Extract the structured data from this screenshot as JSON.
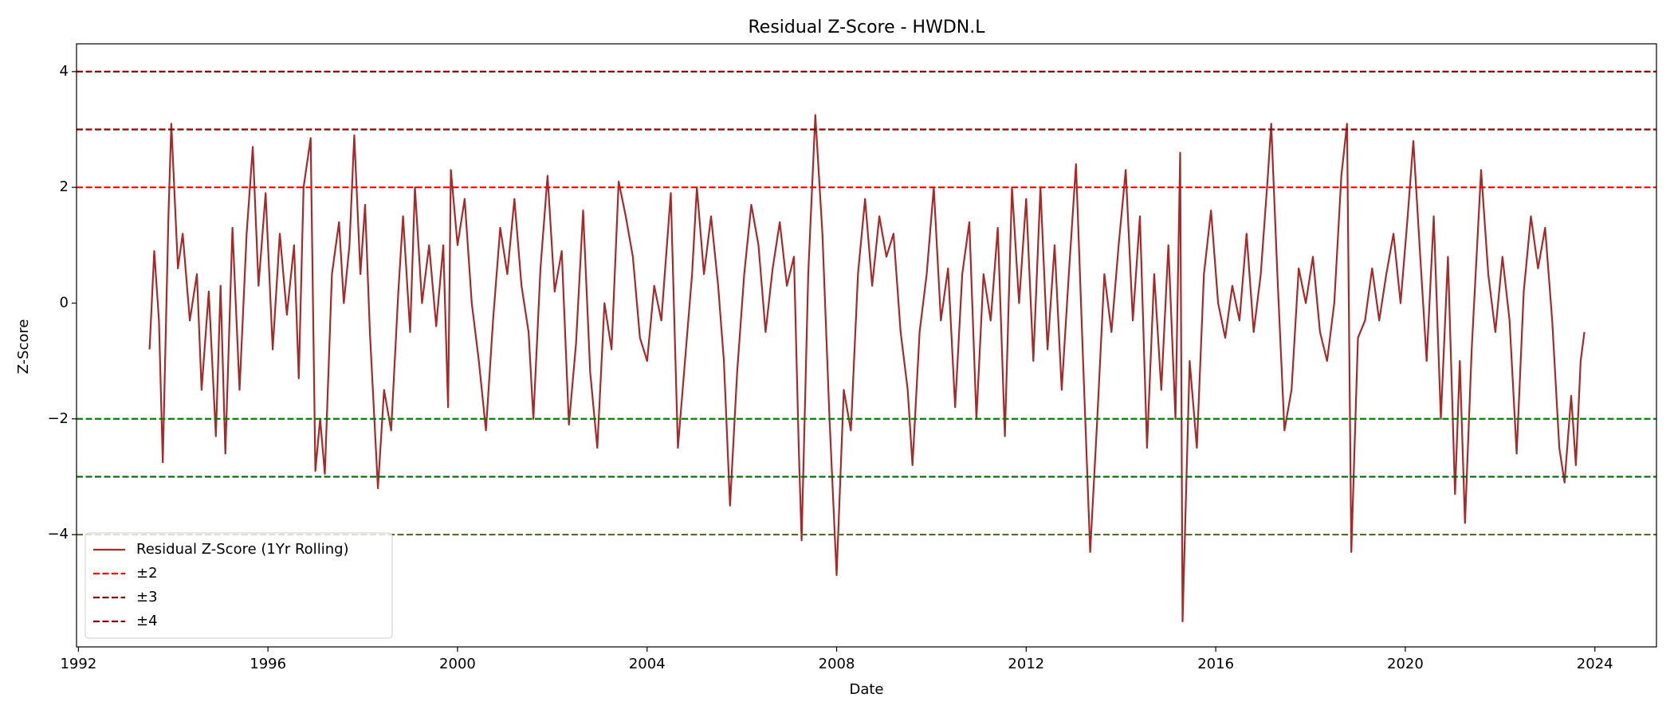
{
  "chart_data": {
    "type": "line",
    "title": "Residual Z-Score - HWDN.L",
    "x_label": "Date",
    "y_label": "Z-Score",
    "x": [
      1993.5,
      1993.6,
      1993.7,
      1993.78,
      1993.9,
      1993.96,
      1994.1,
      1994.2,
      1994.35,
      1994.5,
      1994.6,
      1994.75,
      1994.9,
      1995.0,
      1995.1,
      1995.25,
      1995.4,
      1995.55,
      1995.68,
      1995.8,
      1995.95,
      1996.1,
      1996.25,
      1996.4,
      1996.55,
      1996.65,
      1996.75,
      1996.9,
      1997.0,
      1997.1,
      1997.2,
      1997.35,
      1997.5,
      1997.6,
      1997.72,
      1997.82,
      1997.95,
      1998.05,
      1998.15,
      1998.32,
      1998.45,
      1998.6,
      1998.75,
      1998.85,
      1999.0,
      1999.1,
      1999.25,
      1999.4,
      1999.55,
      1999.7,
      1999.8,
      1999.86,
      2000.0,
      2000.15,
      2000.3,
      2000.45,
      2000.6,
      2000.75,
      2000.9,
      2001.05,
      2001.2,
      2001.35,
      2001.5,
      2001.6,
      2001.75,
      2001.9,
      2002.05,
      2002.2,
      2002.35,
      2002.5,
      2002.65,
      2002.8,
      2002.95,
      2003.1,
      2003.25,
      2003.4,
      2003.55,
      2003.7,
      2003.85,
      2004.0,
      2004.15,
      2004.3,
      2004.5,
      2004.65,
      2004.8,
      2004.95,
      2005.05,
      2005.2,
      2005.35,
      2005.5,
      2005.62,
      2005.75,
      2005.9,
      2006.05,
      2006.2,
      2006.35,
      2006.5,
      2006.65,
      2006.8,
      2006.95,
      2007.1,
      2007.2,
      2007.26,
      2007.4,
      2007.55,
      2007.7,
      2007.85,
      2008.0,
      2008.15,
      2008.3,
      2008.45,
      2008.6,
      2008.75,
      2008.9,
      2009.05,
      2009.2,
      2009.35,
      2009.5,
      2009.6,
      2009.75,
      2009.9,
      2010.05,
      2010.2,
      2010.35,
      2010.5,
      2010.65,
      2010.8,
      2010.95,
      2011.1,
      2011.25,
      2011.4,
      2011.55,
      2011.7,
      2011.85,
      2012.0,
      2012.15,
      2012.3,
      2012.45,
      2012.6,
      2012.75,
      2012.9,
      2013.05,
      2013.2,
      2013.35,
      2013.5,
      2013.65,
      2013.8,
      2013.95,
      2014.1,
      2014.25,
      2014.4,
      2014.55,
      2014.7,
      2014.85,
      2015.0,
      2015.15,
      2015.25,
      2015.3,
      2015.45,
      2015.6,
      2015.75,
      2015.9,
      2016.05,
      2016.2,
      2016.35,
      2016.5,
      2016.65,
      2016.8,
      2016.95,
      2017.1,
      2017.17,
      2017.3,
      2017.45,
      2017.6,
      2017.75,
      2017.9,
      2018.05,
      2018.2,
      2018.35,
      2018.5,
      2018.65,
      2018.77,
      2018.86,
      2019.0,
      2019.15,
      2019.3,
      2019.45,
      2019.6,
      2019.75,
      2019.9,
      2020.05,
      2020.17,
      2020.3,
      2020.45,
      2020.6,
      2020.75,
      2020.9,
      2021.05,
      2021.15,
      2021.26,
      2021.4,
      2021.6,
      2021.75,
      2021.9,
      2022.05,
      2022.2,
      2022.35,
      2022.5,
      2022.65,
      2022.8,
      2022.95,
      2023.1,
      2023.25,
      2023.36,
      2023.5,
      2023.6,
      2023.7,
      2023.78
    ],
    "series": [
      {
        "name": "Residual Z-Score (1Yr Rolling)",
        "color": "#a52a2a",
        "values": [
          -0.8,
          0.9,
          -0.3,
          -2.75,
          1.5,
          3.1,
          0.6,
          1.2,
          -0.3,
          0.5,
          -1.5,
          0.2,
          -2.3,
          0.3,
          -2.6,
          1.3,
          -1.5,
          1.2,
          2.7,
          0.3,
          1.9,
          -0.8,
          1.2,
          -0.2,
          1.0,
          -1.3,
          2.0,
          2.85,
          -2.9,
          -2.0,
          -2.95,
          0.5,
          1.4,
          0.0,
          1.0,
          2.9,
          0.5,
          1.7,
          -0.5,
          -3.2,
          -1.5,
          -2.2,
          0.2,
          1.5,
          -0.5,
          2.0,
          0.0,
          1.0,
          -0.4,
          1.0,
          -1.8,
          2.3,
          1.0,
          1.8,
          0.0,
          -1.0,
          -2.2,
          -0.3,
          1.3,
          0.5,
          1.8,
          0.3,
          -0.5,
          -2.0,
          0.6,
          2.2,
          0.2,
          0.9,
          -2.1,
          -0.7,
          1.6,
          -1.2,
          -2.5,
          0.0,
          -0.8,
          2.1,
          1.5,
          0.8,
          -0.6,
          -1.0,
          0.3,
          -0.3,
          1.9,
          -2.5,
          -1.0,
          0.5,
          2.0,
          0.5,
          1.5,
          0.3,
          -1.0,
          -3.5,
          -1.2,
          0.5,
          1.7,
          1.0,
          -0.5,
          0.6,
          1.4,
          0.3,
          0.8,
          -2.5,
          -4.1,
          0.5,
          3.25,
          1.2,
          -2.0,
          -4.7,
          -1.5,
          -2.2,
          0.5,
          1.8,
          0.3,
          1.5,
          0.8,
          1.2,
          -0.5,
          -1.5,
          -2.8,
          -0.5,
          0.5,
          2.0,
          -0.3,
          0.6,
          -1.8,
          0.5,
          1.4,
          -2.0,
          0.5,
          -0.3,
          1.3,
          -2.3,
          2.0,
          0.0,
          1.8,
          -1.0,
          2.0,
          -0.8,
          1.0,
          -1.5,
          0.5,
          2.4,
          -1.0,
          -4.3,
          -2.0,
          0.5,
          -0.5,
          1.0,
          2.3,
          -0.3,
          1.5,
          -2.5,
          0.5,
          -1.5,
          1.0,
          -2.0,
          2.6,
          -5.5,
          -1.0,
          -2.5,
          0.5,
          1.6,
          0.0,
          -0.6,
          0.3,
          -0.3,
          1.2,
          -0.5,
          0.5,
          2.2,
          3.1,
          0.5,
          -2.2,
          -1.5,
          0.6,
          0.0,
          0.8,
          -0.5,
          -1.0,
          0.0,
          2.2,
          3.1,
          -4.3,
          -0.6,
          -0.3,
          0.6,
          -0.3,
          0.5,
          1.2,
          0.0,
          1.5,
          2.8,
          1.0,
          -1.0,
          1.5,
          -2.0,
          0.8,
          -3.3,
          -1.0,
          -3.8,
          -0.8,
          2.3,
          0.5,
          -0.5,
          0.8,
          -0.3,
          -2.6,
          0.2,
          1.5,
          0.6,
          1.3,
          -0.3,
          -2.5,
          -3.1,
          -1.6,
          -2.8,
          -1.0,
          -0.5
        ]
      }
    ],
    "hlines": [
      {
        "name": "±2",
        "value": 2,
        "color": "#ff0000"
      },
      {
        "value": -2,
        "color": "#008000"
      },
      {
        "name": "±3",
        "value": 3,
        "color": "#8b0000"
      },
      {
        "value": -3,
        "color": "#006400"
      },
      {
        "name": "±4",
        "value": 4,
        "color": "#8b0000"
      },
      {
        "value": -4,
        "color": "#556b2f"
      }
    ],
    "xlim": [
      1991.96,
      2025.3
    ],
    "xticks": [
      1992,
      1996,
      2000,
      2004,
      2008,
      2012,
      2016,
      2020,
      2024
    ],
    "ylim": [
      -5.94,
      4.48
    ],
    "yticks": [
      {
        "value": -4,
        "label": "−4"
      },
      {
        "value": -2,
        "label": "−2"
      },
      0,
      2,
      4
    ],
    "legend": "lower left"
  }
}
